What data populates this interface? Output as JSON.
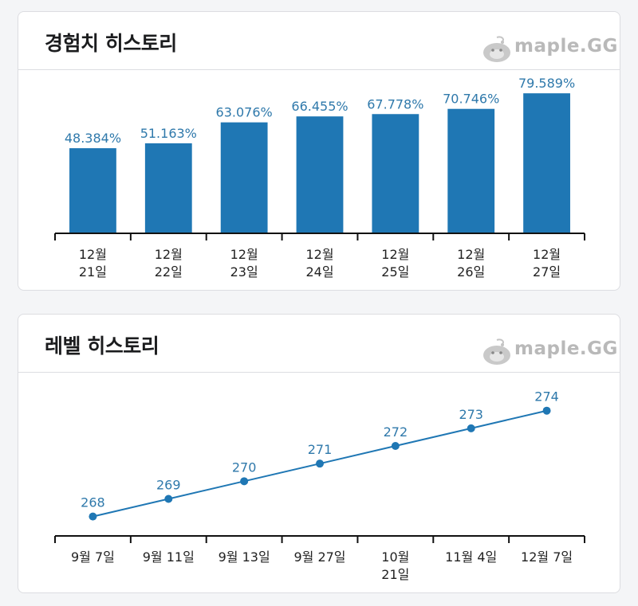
{
  "experience_card": {
    "title": "경험치 히스토리",
    "brand": "maple.GG"
  },
  "level_card": {
    "title": "레벨 히스토리",
    "brand": "maple.GG"
  },
  "colors": {
    "bar": "#1f77b4",
    "line": "#1f77b4",
    "label": "#2f79ab"
  },
  "chart_data": [
    {
      "type": "bar",
      "title": "경험치 히스토리",
      "categories": [
        [
          "12월",
          "21일"
        ],
        [
          "12월",
          "22일"
        ],
        [
          "12월",
          "23일"
        ],
        [
          "12월",
          "24일"
        ],
        [
          "12월",
          "25일"
        ],
        [
          "12월",
          "26일"
        ],
        [
          "12월",
          "27일"
        ]
      ],
      "values": [
        48.384,
        51.163,
        63.076,
        66.455,
        67.778,
        70.746,
        79.589
      ],
      "value_labels": [
        "48.384%",
        "51.163%",
        "63.076%",
        "66.455%",
        "67.778%",
        "70.746%",
        "79.589%"
      ],
      "ylim": [
        0,
        86
      ],
      "grid": false,
      "legend": "none"
    },
    {
      "type": "line",
      "title": "레벨 히스토리",
      "categories": [
        [
          "9월 7일"
        ],
        [
          "9월 11일"
        ],
        [
          "9월 13일"
        ],
        [
          "9월 27일"
        ],
        [
          "10월",
          "21일"
        ],
        [
          "11월 4일"
        ],
        [
          "12월 7일"
        ]
      ],
      "values": [
        268,
        269,
        270,
        271,
        272,
        273,
        274
      ],
      "value_labels": [
        "268",
        "269",
        "270",
        "271",
        "272",
        "273",
        "274"
      ],
      "ylim": [
        266.9,
        274.8
      ],
      "grid": false,
      "legend": "none"
    }
  ]
}
